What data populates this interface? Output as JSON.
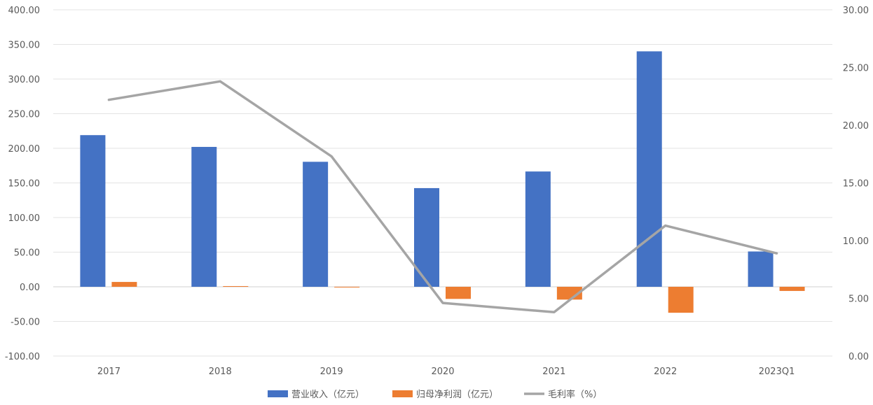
{
  "chart_data": {
    "type": "bar",
    "categories": [
      "2017",
      "2018",
      "2019",
      "2020",
      "2021",
      "2022",
      "2023Q1"
    ],
    "series": [
      {
        "name": "营业收入（亿元）",
        "type": "bar",
        "axis": "left",
        "color": "#4472C4",
        "values": [
          219.0,
          202.0,
          180.5,
          142.5,
          166.5,
          340.0,
          51.0
        ]
      },
      {
        "name": "归母净利润（亿元）",
        "type": "bar",
        "axis": "left",
        "color": "#ED7D31",
        "values": [
          7.0,
          1.0,
          -0.5,
          -17.5,
          -18.5,
          -37.5,
          -6.0
        ]
      },
      {
        "name": "毛利率（%）",
        "type": "line",
        "axis": "right",
        "color": "#A5A5A5",
        "values": [
          22.2,
          23.8,
          17.3,
          4.6,
          3.8,
          11.3,
          8.9
        ]
      }
    ],
    "y_left": {
      "min": -100,
      "max": 400,
      "step": 50,
      "tick_labels": [
        "-100.00",
        "-50.00",
        "0.00",
        "50.00",
        "100.00",
        "150.00",
        "200.00",
        "250.00",
        "300.00",
        "350.00",
        "400.00"
      ]
    },
    "y_right": {
      "min": 0,
      "max": 30,
      "step": 5,
      "tick_labels": [
        "0.00",
        "5.00",
        "10.00",
        "15.00",
        "20.00",
        "25.00",
        "30.00"
      ]
    },
    "grid": true,
    "legend_position": "bottom",
    "title": "",
    "xlabel": "",
    "ylabel": ""
  }
}
